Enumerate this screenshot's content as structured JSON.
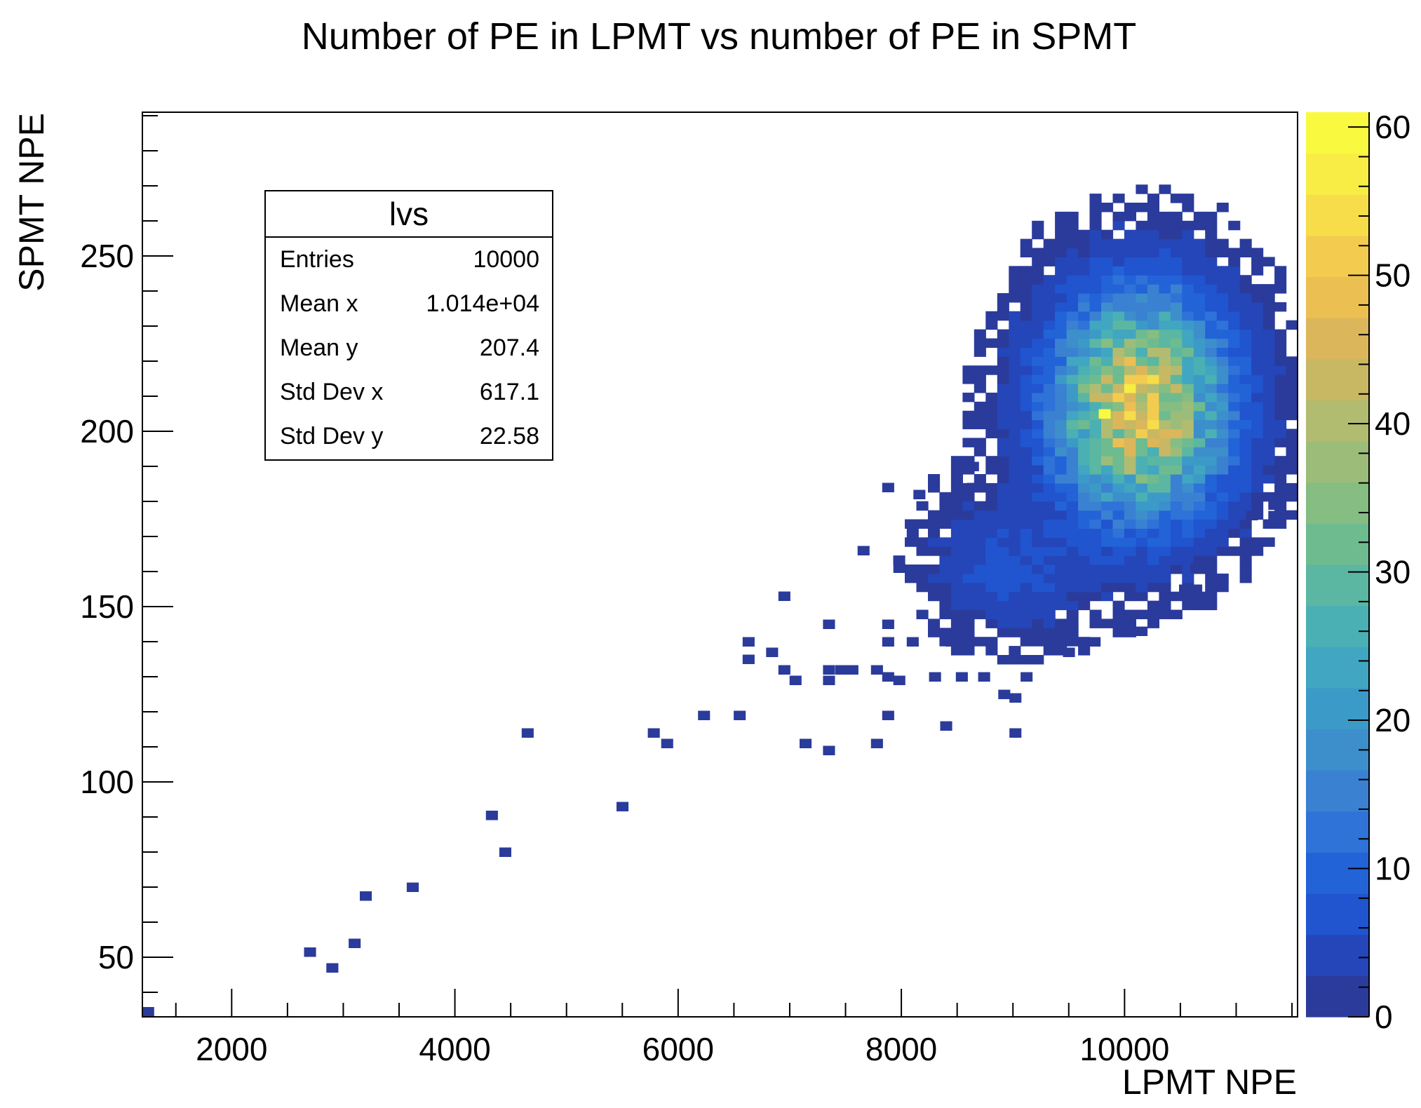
{
  "chart_data": {
    "type": "heatmap",
    "title": "Number of PE in LPMT vs number of PE in SPMT",
    "xlabel": "LPMT NPE",
    "ylabel": "SPMT NPE",
    "xlim": [
      1200,
      11550
    ],
    "ylim": [
      33,
      291
    ],
    "x_ticks": [
      2000,
      4000,
      6000,
      8000,
      10000
    ],
    "y_ticks": [
      50,
      100,
      150,
      200,
      250
    ],
    "zlim": [
      0,
      61
    ],
    "z_ticks": [
      0,
      10,
      20,
      30,
      40,
      50,
      60
    ],
    "bin_width_x": 103.5,
    "bin_width_y": 2.58,
    "colormap": [
      "#2b3b9b",
      "#2546b8",
      "#2154cf",
      "#2363d8",
      "#2f72d8",
      "#3a81d2",
      "#3d8fcc",
      "#3c9ac8",
      "#40a6c1",
      "#4ab0b4",
      "#5bb7a1",
      "#6ebb90",
      "#85bd82",
      "#9cbd79",
      "#b2bc70",
      "#c8b863",
      "#dcb65a",
      "#ecbf53",
      "#f3cc4f",
      "#f6dd49",
      "#f7ed45",
      "#f9fa40"
    ],
    "sparse_points": [
      [
        1250,
        34.5,
        1
      ],
      [
        2700,
        51.5,
        1
      ],
      [
        2900,
        47,
        1
      ],
      [
        3100,
        54,
        1
      ],
      [
        3200,
        67.5,
        1
      ],
      [
        3620,
        70,
        1
      ],
      [
        4330,
        90.5,
        1
      ],
      [
        4450,
        80,
        1
      ],
      [
        4650,
        114,
        1
      ],
      [
        5500,
        93,
        1
      ],
      [
        5780,
        114,
        1
      ],
      [
        5900,
        111,
        1
      ],
      [
        6230,
        119,
        1
      ],
      [
        6550,
        119,
        1
      ],
      [
        6630,
        140,
        1
      ],
      [
        6630,
        135,
        1
      ],
      [
        6840,
        137,
        1
      ],
      [
        6950,
        153,
        1
      ],
      [
        6950,
        132,
        1
      ],
      [
        7050,
        129,
        1
      ],
      [
        7140,
        111,
        1
      ],
      [
        7350,
        145,
        1
      ],
      [
        7350,
        129,
        1
      ],
      [
        7350,
        132,
        1
      ],
      [
        7350,
        109,
        1
      ],
      [
        7460,
        132,
        1
      ],
      [
        7560,
        132,
        1
      ],
      [
        7660,
        166,
        1
      ],
      [
        7780,
        132,
        1
      ],
      [
        7780,
        111,
        1
      ],
      [
        7880,
        140,
        1
      ],
      [
        7880,
        130,
        1
      ],
      [
        7880,
        145,
        1
      ],
      [
        7880,
        119,
        1
      ],
      [
        7880,
        184,
        1
      ],
      [
        7980,
        161,
        1
      ],
      [
        7980,
        129,
        1
      ],
      [
        8100,
        140,
        1
      ],
      [
        8100,
        171,
        1
      ],
      [
        8160,
        182,
        1
      ],
      [
        8300,
        130,
        1
      ],
      [
        8400,
        116,
        1
      ],
      [
        8450,
        140,
        1
      ],
      [
        8540,
        130,
        1
      ],
      [
        8640,
        184,
        1
      ],
      [
        8640,
        190,
        1
      ],
      [
        8740,
        130,
        1
      ],
      [
        8920,
        125,
        1
      ],
      [
        9020,
        114,
        1
      ],
      [
        9020,
        124,
        1
      ],
      [
        9120,
        130,
        1
      ],
      [
        9500,
        145,
        1
      ],
      [
        9500,
        137,
        1
      ],
      [
        9730,
        140,
        1
      ],
      [
        10150,
        143,
        1
      ],
      [
        10540,
        155,
        1
      ],
      [
        10640,
        155,
        1
      ],
      [
        10640,
        161,
        1
      ],
      [
        11140,
        176,
        1
      ],
      [
        11340,
        176,
        1
      ],
      [
        11340,
        179,
        1
      ]
    ],
    "clusters": [
      {
        "center_x": 10140,
        "center_y": 207.4,
        "sigma_x": 520,
        "sigma_y": 21,
        "peak": 46
      },
      {
        "center_x": 9000,
        "center_y": 158,
        "sigma_x": 420,
        "sigma_y": 11,
        "peak": 6
      },
      {
        "center_x": 8600,
        "center_y": 170,
        "sigma_x": 300,
        "sigma_y": 10,
        "peak": 2
      }
    ],
    "max_bin": {
      "x": 9820,
      "y": 205,
      "value": 61
    },
    "stats": {
      "name": "lvs",
      "rows": [
        {
          "label": "Entries",
          "value": "10000"
        },
        {
          "label": "Mean x",
          "value": "1.014e+04"
        },
        {
          "label": "Mean y",
          "value": "207.4"
        },
        {
          "label": "Std Dev x",
          "value": "617.1"
        },
        {
          "label": "Std Dev y",
          "value": "22.58"
        }
      ]
    }
  }
}
